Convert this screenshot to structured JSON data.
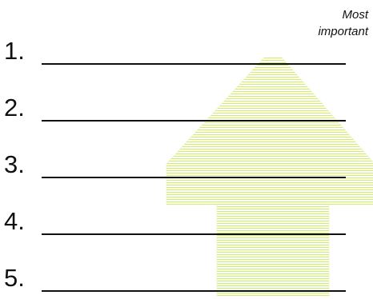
{
  "caption": {
    "line1": "Most",
    "line2": "important"
  },
  "arrow": {
    "icon": "up-arrow-icon",
    "stripe_color_top": "#f1ef7a",
    "stripe_color_bottom": "#9fe37a"
  },
  "ranks": [
    {
      "number": "1."
    },
    {
      "number": "2."
    },
    {
      "number": "3."
    },
    {
      "number": "4."
    },
    {
      "number": "5."
    }
  ]
}
